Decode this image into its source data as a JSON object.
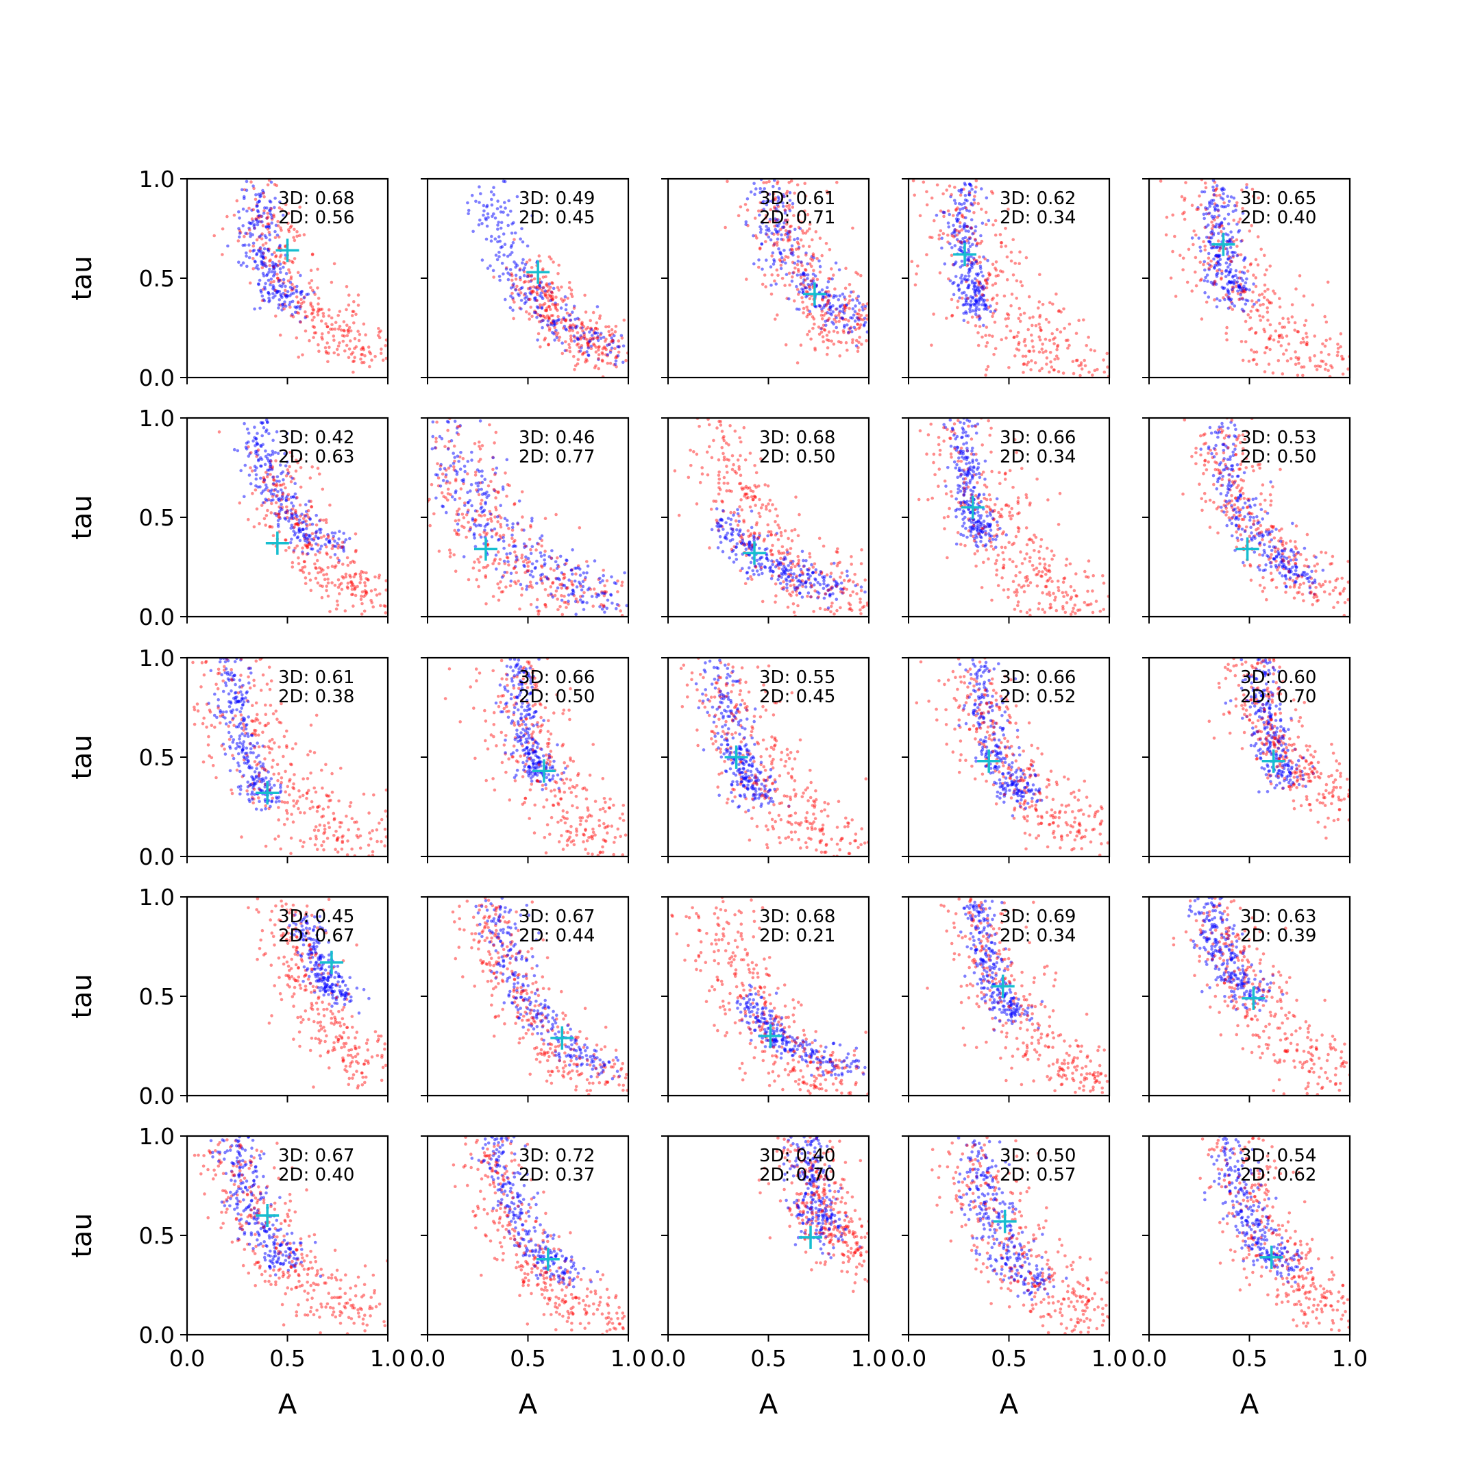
{
  "chart_data": {
    "type": "scatter",
    "layout": "5x5 grid of subplots",
    "xlabel": "A",
    "ylabel": "tau",
    "xlim": [
      0,
      1
    ],
    "ylim": [
      0,
      1
    ],
    "xticks": [
      "0.0",
      "0.5",
      "1.0"
    ],
    "yticks": [
      "0.0",
      "0.5",
      "1.0"
    ],
    "grid": false,
    "legend": "none",
    "colors": {
      "blue_series": "#0000ff",
      "red_series": "#ff0000",
      "marker": "#17becf"
    },
    "panels": [
      {
        "row": 0,
        "col": 0,
        "label_3d": "3D: 0.68",
        "label_2d": "2D: 0.56",
        "marker": [
          0.5,
          0.64
        ],
        "blue": {
          "shape": "curve",
          "start": [
            0.34,
            1.0
          ],
          "end": [
            0.52,
            0.38
          ],
          "spread": 0.06,
          "n": 250
        },
        "red": {
          "shape": "curve",
          "start": [
            0.38,
            1.0
          ],
          "end": [
            0.95,
            0.1
          ],
          "spread": 0.1,
          "n": 320
        }
      },
      {
        "row": 0,
        "col": 1,
        "label_3d": "3D: 0.49",
        "label_2d": "2D: 0.45",
        "marker": [
          0.55,
          0.53
        ],
        "blue": {
          "shape": "curve",
          "start": [
            0.3,
            1.0
          ],
          "end": [
            0.95,
            0.15
          ],
          "spread": 0.07,
          "n": 260
        },
        "red": {
          "shape": "curve",
          "start": [
            0.52,
            0.55
          ],
          "end": [
            1.0,
            0.12
          ],
          "spread": 0.09,
          "n": 320
        }
      },
      {
        "row": 0,
        "col": 2,
        "label_3d": "3D: 0.61",
        "label_2d": "2D: 0.71",
        "marker": [
          0.73,
          0.42
        ],
        "blue": {
          "shape": "curve",
          "start": [
            0.5,
            1.0
          ],
          "end": [
            0.95,
            0.3
          ],
          "spread": 0.07,
          "n": 260
        },
        "red": {
          "shape": "curve",
          "start": [
            0.55,
            1.0
          ],
          "end": [
            1.0,
            0.2
          ],
          "spread": 0.12,
          "n": 340
        }
      },
      {
        "row": 0,
        "col": 3,
        "label_3d": "3D: 0.62",
        "label_2d": "2D: 0.34",
        "marker": [
          0.28,
          0.62
        ],
        "blue": {
          "shape": "curve",
          "start": [
            0.26,
            1.0
          ],
          "end": [
            0.35,
            0.35
          ],
          "spread": 0.05,
          "n": 260
        },
        "red": {
          "shape": "curve",
          "start": [
            0.22,
            1.0
          ],
          "end": [
            0.95,
            0.02
          ],
          "spread": 0.14,
          "n": 360
        }
      },
      {
        "row": 0,
        "col": 4,
        "label_3d": "3D: 0.65",
        "label_2d": "2D: 0.40",
        "marker": [
          0.37,
          0.67
        ],
        "blue": {
          "shape": "curve",
          "start": [
            0.32,
            1.0
          ],
          "end": [
            0.45,
            0.4
          ],
          "spread": 0.06,
          "n": 250
        },
        "red": {
          "shape": "curve",
          "start": [
            0.3,
            1.0
          ],
          "end": [
            0.95,
            0.05
          ],
          "spread": 0.13,
          "n": 340
        }
      },
      {
        "row": 1,
        "col": 0,
        "label_3d": "3D: 0.42",
        "label_2d": "2D: 0.63",
        "marker": [
          0.45,
          0.37
        ],
        "blue": {
          "shape": "curve",
          "start": [
            0.35,
            1.0
          ],
          "end": [
            0.75,
            0.35
          ],
          "spread": 0.06,
          "n": 260
        },
        "red": {
          "shape": "curve",
          "start": [
            0.45,
            0.8
          ],
          "end": [
            1.0,
            0.1
          ],
          "spread": 0.1,
          "n": 320
        }
      },
      {
        "row": 1,
        "col": 1,
        "label_3d": "3D: 0.46",
        "label_2d": "2D: 0.77",
        "marker": [
          0.29,
          0.34
        ],
        "blue": {
          "shape": "curve",
          "start": [
            0.1,
            1.0
          ],
          "end": [
            0.95,
            0.08
          ],
          "spread": 0.1,
          "n": 300
        },
        "red": {
          "shape": "curve",
          "start": [
            0.08,
            1.0
          ],
          "end": [
            0.95,
            0.02
          ],
          "spread": 0.15,
          "n": 380
        }
      },
      {
        "row": 1,
        "col": 2,
        "label_3d": "3D: 0.68",
        "label_2d": "2D: 0.50",
        "marker": [
          0.43,
          0.32
        ],
        "blue": {
          "shape": "curve",
          "start": [
            0.3,
            0.5
          ],
          "end": [
            0.9,
            0.15
          ],
          "spread": 0.06,
          "n": 260
        },
        "red": {
          "shape": "curve",
          "start": [
            0.25,
            1.0
          ],
          "end": [
            0.95,
            0.1
          ],
          "spread": 0.12,
          "n": 360
        }
      },
      {
        "row": 1,
        "col": 3,
        "label_3d": "3D: 0.66",
        "label_2d": "2D: 0.34",
        "marker": [
          0.32,
          0.55
        ],
        "blue": {
          "shape": "curve",
          "start": [
            0.28,
            1.0
          ],
          "end": [
            0.38,
            0.4
          ],
          "spread": 0.05,
          "n": 250
        },
        "red": {
          "shape": "curve",
          "start": [
            0.25,
            1.0
          ],
          "end": [
            0.95,
            0.05
          ],
          "spread": 0.14,
          "n": 360
        }
      },
      {
        "row": 1,
        "col": 4,
        "label_3d": "3D: 0.53",
        "label_2d": "2D: 0.50",
        "marker": [
          0.49,
          0.34
        ],
        "blue": {
          "shape": "curve",
          "start": [
            0.35,
            1.0
          ],
          "end": [
            0.8,
            0.2
          ],
          "spread": 0.06,
          "n": 260
        },
        "red": {
          "shape": "curve",
          "start": [
            0.35,
            1.0
          ],
          "end": [
            1.0,
            0.1
          ],
          "spread": 0.1,
          "n": 330
        }
      },
      {
        "row": 2,
        "col": 0,
        "label_3d": "3D: 0.61",
        "label_2d": "2D: 0.38",
        "marker": [
          0.4,
          0.32
        ],
        "blue": {
          "shape": "curve",
          "start": [
            0.22,
            1.0
          ],
          "end": [
            0.42,
            0.3
          ],
          "spread": 0.05,
          "n": 250
        },
        "red": {
          "shape": "curve",
          "start": [
            0.2,
            1.0
          ],
          "end": [
            0.95,
            0.05
          ],
          "spread": 0.14,
          "n": 360
        }
      },
      {
        "row": 2,
        "col": 1,
        "label_3d": "3D: 0.66",
        "label_2d": "2D: 0.50",
        "marker": [
          0.58,
          0.43
        ],
        "blue": {
          "shape": "curve",
          "start": [
            0.45,
            1.0
          ],
          "end": [
            0.6,
            0.4
          ],
          "spread": 0.05,
          "n": 250
        },
        "red": {
          "shape": "curve",
          "start": [
            0.42,
            1.0
          ],
          "end": [
            1.0,
            0.05
          ],
          "spread": 0.13,
          "n": 340
        }
      },
      {
        "row": 2,
        "col": 2,
        "label_3d": "3D: 0.55",
        "label_2d": "2D: 0.45",
        "marker": [
          0.34,
          0.5
        ],
        "blue": {
          "shape": "curve",
          "start": [
            0.25,
            1.0
          ],
          "end": [
            0.5,
            0.3
          ],
          "spread": 0.06,
          "n": 260
        },
        "red": {
          "shape": "curve",
          "start": [
            0.25,
            1.0
          ],
          "end": [
            0.95,
            0.05
          ],
          "spread": 0.13,
          "n": 360
        }
      },
      {
        "row": 2,
        "col": 3,
        "label_3d": "3D: 0.66",
        "label_2d": "2D: 0.52",
        "marker": [
          0.4,
          0.48
        ],
        "blue": {
          "shape": "curve",
          "start": [
            0.35,
            1.0
          ],
          "end": [
            0.6,
            0.3
          ],
          "spread": 0.06,
          "n": 260
        },
        "red": {
          "shape": "curve",
          "start": [
            0.3,
            1.0
          ],
          "end": [
            1.0,
            0.1
          ],
          "spread": 0.12,
          "n": 340
        }
      },
      {
        "row": 2,
        "col": 4,
        "label_3d": "3D: 0.60",
        "label_2d": "2D: 0.70",
        "marker": [
          0.62,
          0.48
        ],
        "blue": {
          "shape": "curve",
          "start": [
            0.55,
            1.0
          ],
          "end": [
            0.7,
            0.4
          ],
          "spread": 0.06,
          "n": 250
        },
        "red": {
          "shape": "curve",
          "start": [
            0.5,
            1.0
          ],
          "end": [
            1.0,
            0.3
          ],
          "spread": 0.1,
          "n": 320
        }
      },
      {
        "row": 3,
        "col": 0,
        "label_3d": "3D: 0.45",
        "label_2d": "2D: 0.67",
        "marker": [
          0.72,
          0.67
        ],
        "blue": {
          "shape": "curve",
          "start": [
            0.6,
            0.9
          ],
          "end": [
            0.8,
            0.5
          ],
          "spread": 0.05,
          "n": 220
        },
        "red": {
          "shape": "curve",
          "start": [
            0.5,
            1.0
          ],
          "end": [
            1.0,
            0.15
          ],
          "spread": 0.1,
          "n": 300
        }
      },
      {
        "row": 3,
        "col": 1,
        "label_3d": "3D: 0.67",
        "label_2d": "2D: 0.44",
        "marker": [
          0.67,
          0.29
        ],
        "blue": {
          "shape": "curve",
          "start": [
            0.35,
            1.0
          ],
          "end": [
            0.9,
            0.15
          ],
          "spread": 0.06,
          "n": 260
        },
        "red": {
          "shape": "curve",
          "start": [
            0.3,
            1.0
          ],
          "end": [
            1.0,
            0.05
          ],
          "spread": 0.1,
          "n": 340
        }
      },
      {
        "row": 3,
        "col": 2,
        "label_3d": "3D: 0.68",
        "label_2d": "2D: 0.21",
        "marker": [
          0.51,
          0.3
        ],
        "blue": {
          "shape": "curve",
          "start": [
            0.4,
            0.5
          ],
          "end": [
            0.95,
            0.15
          ],
          "spread": 0.05,
          "n": 240
        },
        "red": {
          "shape": "curve",
          "start": [
            0.25,
            1.0
          ],
          "end": [
            0.95,
            0.05
          ],
          "spread": 0.12,
          "n": 360
        }
      },
      {
        "row": 3,
        "col": 3,
        "label_3d": "3D: 0.69",
        "label_2d": "2D: 0.34",
        "marker": [
          0.47,
          0.55
        ],
        "blue": {
          "shape": "curve",
          "start": [
            0.35,
            1.0
          ],
          "end": [
            0.55,
            0.4
          ],
          "spread": 0.05,
          "n": 250
        },
        "red": {
          "shape": "curve",
          "start": [
            0.35,
            1.0
          ],
          "end": [
            1.0,
            0.05
          ],
          "spread": 0.12,
          "n": 340
        }
      },
      {
        "row": 3,
        "col": 4,
        "label_3d": "3D: 0.63",
        "label_2d": "2D: 0.39",
        "marker": [
          0.52,
          0.49
        ],
        "blue": {
          "shape": "curve",
          "start": [
            0.3,
            1.0
          ],
          "end": [
            0.55,
            0.5
          ],
          "spread": 0.06,
          "n": 250
        },
        "red": {
          "shape": "curve",
          "start": [
            0.35,
            1.0
          ],
          "end": [
            1.0,
            0.1
          ],
          "spread": 0.12,
          "n": 340
        }
      },
      {
        "row": 4,
        "col": 0,
        "label_3d": "3D: 0.67",
        "label_2d": "2D: 0.40",
        "marker": [
          0.4,
          0.6
        ],
        "blue": {
          "shape": "curve",
          "start": [
            0.25,
            1.0
          ],
          "end": [
            0.55,
            0.35
          ],
          "spread": 0.06,
          "n": 260
        },
        "red": {
          "shape": "curve",
          "start": [
            0.22,
            1.0
          ],
          "end": [
            0.98,
            0.08
          ],
          "spread": 0.12,
          "n": 350
        }
      },
      {
        "row": 4,
        "col": 1,
        "label_3d": "3D: 0.72",
        "label_2d": "2D: 0.37",
        "marker": [
          0.6,
          0.38
        ],
        "blue": {
          "shape": "curve",
          "start": [
            0.35,
            1.0
          ],
          "end": [
            0.75,
            0.3
          ],
          "spread": 0.06,
          "n": 250
        },
        "red": {
          "shape": "curve",
          "start": [
            0.3,
            1.0
          ],
          "end": [
            1.0,
            0.05
          ],
          "spread": 0.1,
          "n": 340
        }
      },
      {
        "row": 4,
        "col": 2,
        "label_3d": "3D: 0.40",
        "label_2d": "2D: 0.70",
        "marker": [
          0.71,
          0.49
        ],
        "blue": {
          "shape": "curve",
          "start": [
            0.7,
            1.0
          ],
          "end": [
            0.8,
            0.5
          ],
          "spread": 0.06,
          "n": 240
        },
        "red": {
          "shape": "curve",
          "start": [
            0.68,
            1.0
          ],
          "end": [
            1.0,
            0.4
          ],
          "spread": 0.1,
          "n": 320
        }
      },
      {
        "row": 4,
        "col": 3,
        "label_3d": "3D: 0.50",
        "label_2d": "2D: 0.57",
        "marker": [
          0.48,
          0.57
        ],
        "blue": {
          "shape": "curve",
          "start": [
            0.35,
            1.0
          ],
          "end": [
            0.65,
            0.25
          ],
          "spread": 0.07,
          "n": 270
        },
        "red": {
          "shape": "curve",
          "start": [
            0.3,
            1.0
          ],
          "end": [
            1.0,
            0.1
          ],
          "spread": 0.12,
          "n": 350
        }
      },
      {
        "row": 4,
        "col": 4,
        "label_3d": "3D: 0.54",
        "label_2d": "2D: 0.62",
        "marker": [
          0.61,
          0.39
        ],
        "blue": {
          "shape": "curve",
          "start": [
            0.4,
            1.0
          ],
          "end": [
            0.7,
            0.35
          ],
          "spread": 0.06,
          "n": 260
        },
        "red": {
          "shape": "curve",
          "start": [
            0.45,
            1.0
          ],
          "end": [
            1.0,
            0.1
          ],
          "spread": 0.11,
          "n": 330
        }
      }
    ]
  }
}
